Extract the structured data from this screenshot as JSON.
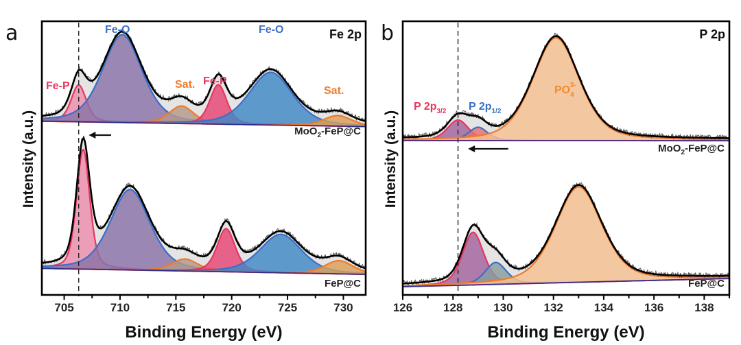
{
  "chart_data": [
    {
      "panel": "a",
      "type": "line",
      "title": "Fe 2p",
      "xlabel": "Binding Energy (eV)",
      "ylabel": "Intensity (a.u.)",
      "xlim": [
        703,
        732
      ],
      "xticks": [
        705,
        710,
        715,
        720,
        725,
        730
      ],
      "x_reversed": false,
      "grid": false,
      "reference_line_eV": 706.3,
      "shift_arrow": {
        "from_eV": 709.2,
        "to_eV": 707.2,
        "direction": "left"
      },
      "spectra": [
        {
          "sample": "MoO2-FeP@C",
          "sample_display": [
            "MoO",
            "2",
            "-FeP@C"
          ],
          "position": "top",
          "envelope_peak_heights": [
            0.45,
            1.0,
            0.2,
            0.45,
            0.6,
            0.14
          ],
          "components": [
            {
              "label": "Fe-P",
              "center": 706.3,
              "height": 0.42,
              "fwhm": 1.6,
              "color": "#e8365d",
              "fill": "#ee8fae"
            },
            {
              "label": "Fe-O",
              "center": 710.2,
              "height": 1.0,
              "fwhm": 4.2,
              "color": "#3a6fc8",
              "fill": "#8a73a8"
            },
            {
              "label": "Sat.",
              "center": 715.5,
              "height": 0.2,
              "fwhm": 2.6,
              "color": "#f07a28",
              "fill": "#b5998a"
            },
            {
              "label": "Fe-P",
              "center": 718.8,
              "height": 0.45,
              "fwhm": 1.8,
              "color": "#e8365d",
              "fill": "#e64675"
            },
            {
              "label": "Fe-O",
              "center": 723.5,
              "height": 0.6,
              "fwhm": 4.6,
              "color": "#3a6fc8",
              "fill": "#4189c6"
            },
            {
              "label": "Sat.",
              "center": 729.5,
              "height": 0.12,
              "fwhm": 3.0,
              "color": "#f07a28",
              "fill": "#d9a05a"
            }
          ]
        },
        {
          "sample": "FeP@C",
          "sample_display": [
            "FeP@C"
          ],
          "position": "bottom",
          "components": [
            {
              "label": "Fe-P",
              "center": 706.7,
              "height": 1.0,
              "fwhm": 1.4,
              "color": "#e8365d",
              "fill": "#ee8fae"
            },
            {
              "label": "Fe-O",
              "center": 710.9,
              "height": 0.67,
              "fwhm": 4.2,
              "color": "#3a6fc8",
              "fill": "#8a73a8"
            },
            {
              "label": "Sat.",
              "center": 715.8,
              "height": 0.1,
              "fwhm": 2.8,
              "color": "#f07a28",
              "fill": "#b5998a"
            },
            {
              "label": "Fe-P",
              "center": 719.5,
              "height": 0.36,
              "fwhm": 1.9,
              "color": "#e8365d",
              "fill": "#e64675"
            },
            {
              "label": "Fe-O",
              "center": 724.4,
              "height": 0.32,
              "fwhm": 4.4,
              "color": "#3a6fc8",
              "fill": "#4189c6"
            },
            {
              "label": "Sat.",
              "center": 729.6,
              "height": 0.11,
              "fwhm": 3.0,
              "color": "#f07a28",
              "fill": "#d9a05a"
            }
          ]
        }
      ],
      "annotations": [
        {
          "text": "Fe-P",
          "color": "#e8365d",
          "near_eV": 705.2,
          "spectrum": "top"
        },
        {
          "text": "Fe-O",
          "color": "#3a6fc8",
          "near_eV": 710.1,
          "spectrum": "top"
        },
        {
          "text": "Sat.",
          "color": "#f07a28",
          "near_eV": 715.5,
          "spectrum": "top"
        },
        {
          "text": "Fe-P",
          "color": "#e8365d",
          "near_eV": 718.7,
          "spectrum": "top"
        },
        {
          "text": "Fe-O",
          "color": "#3a6fc8",
          "near_eV": 723.6,
          "spectrum": "top"
        },
        {
          "text": "Sat.",
          "color": "#f07a28",
          "near_eV": 729.8,
          "spectrum": "top"
        }
      ]
    },
    {
      "panel": "b",
      "type": "line",
      "title": "P 2p",
      "xlabel": "Binding Energy (eV)",
      "ylabel": "Intensity (a.u.)",
      "xlim": [
        126,
        139
      ],
      "xticks": [
        126,
        128,
        130,
        132,
        134,
        136,
        138
      ],
      "x_reversed": false,
      "grid": false,
      "reference_line_eV": 128.2,
      "shift_arrow": {
        "from_eV": 130.2,
        "to_eV": 128.6,
        "direction": "left"
      },
      "spectra": [
        {
          "sample": "MoO2-FeP@C",
          "sample_display": [
            "MoO",
            "2",
            "-FeP@C"
          ],
          "position": "top",
          "components": [
            {
              "label": "P 2p3/2",
              "center": 128.2,
              "height": 0.2,
              "fwhm": 1.0,
              "color": "#e8365d",
              "fill": "#a2649e"
            },
            {
              "label": "P 2p1/2",
              "center": 129.0,
              "height": 0.13,
              "fwhm": 0.9,
              "color": "#3a6fc8",
              "fill": "#ec6f6f"
            },
            {
              "label": "PO4 3-",
              "center": 132.1,
              "height": 1.0,
              "fwhm": 2.2,
              "color": "#f07a28",
              "fill": "#f7c292"
            }
          ]
        },
        {
          "sample": "FeP@C",
          "sample_display": [
            "FeP@C"
          ],
          "position": "bottom",
          "components": [
            {
              "label": "P 2p3/2",
              "center": 128.8,
              "height": 0.48,
              "fwhm": 1.0,
              "color": "#e8365d",
              "fill": "#a2649e"
            },
            {
              "label": "P 2p1/2",
              "center": 129.7,
              "height": 0.2,
              "fwhm": 1.0,
              "color": "#3a6fc8",
              "fill": "#8a9e9e"
            },
            {
              "label": "PO4 3-",
              "center": 133.0,
              "height": 0.87,
              "fwhm": 2.2,
              "color": "#f07a28",
              "fill": "#f7c292"
            }
          ]
        }
      ],
      "annotations": [
        {
          "text": "P 2p",
          "sub": "3/2",
          "color": "#e8365d",
          "spectrum": "top"
        },
        {
          "text": "P 2p",
          "sub": "1/2",
          "color": "#3a6fc8",
          "spectrum": "top"
        },
        {
          "text": "PO",
          "sub": "4",
          "sup": "3-",
          "color": "#f08a30",
          "spectrum": "top"
        }
      ]
    }
  ],
  "labels": {
    "panel_a": "a",
    "panel_b": "b",
    "ylabel": "Intensity (a.u.)",
    "xlabel": "Binding Energy (eV)"
  }
}
